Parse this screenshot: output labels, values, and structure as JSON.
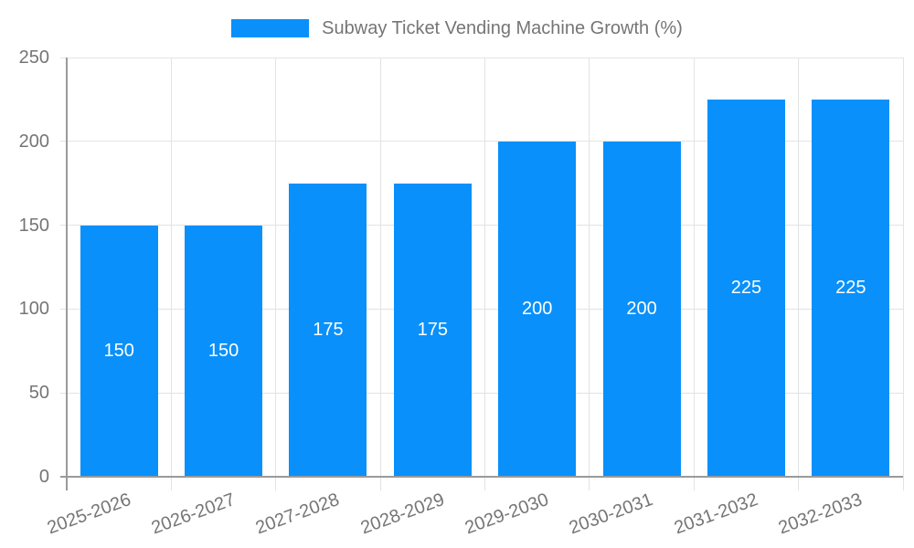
{
  "legend": {
    "label": "Subway Ticket Vending Machine Growth (%)"
  },
  "chart_data": {
    "type": "bar",
    "title": "Subway Ticket Vending Machine Growth (%)",
    "categories": [
      "2025-2026",
      "2026-2027",
      "2027-2028",
      "2028-2029",
      "2029-2030",
      "2030-2031",
      "2031-2032",
      "2032-2033"
    ],
    "values": [
      150,
      150,
      175,
      175,
      200,
      200,
      225,
      225
    ],
    "series": [
      {
        "name": "Subway Ticket Vending Machine Growth (%)",
        "values": [
          150,
          150,
          175,
          175,
          200,
          200,
          225,
          225
        ]
      }
    ],
    "xlabel": "",
    "ylabel": "",
    "yticks": [
      0,
      50,
      100,
      150,
      200,
      250
    ],
    "ylim": [
      0,
      250
    ],
    "grid": true,
    "legend_position": "top-center",
    "value_labels": "inside-center",
    "xlabel_rotation_deg": -20,
    "bar_color": "#0990fa",
    "value_label_color": "#ffffff",
    "axis_text_color": "#757575",
    "grid_color": "#e3e3e3",
    "axis_line_color": "#9a9a9a",
    "background_color": "#ffffff"
  }
}
